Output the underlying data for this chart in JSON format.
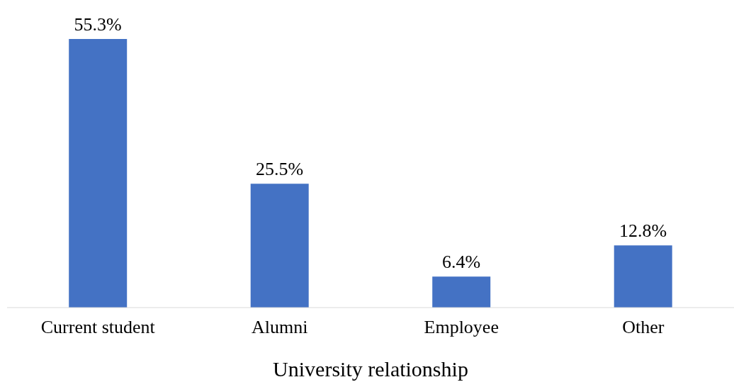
{
  "chart_data": {
    "type": "bar",
    "xlabel": "University relationship",
    "categories": [
      "Current student",
      "Alumni",
      "Employee",
      "Other"
    ],
    "values": [
      55.3,
      25.5,
      6.4,
      12.8
    ],
    "value_labels": [
      "55.3%",
      "25.5%",
      "6.4%",
      "12.8%"
    ],
    "color": "#4472c4"
  }
}
